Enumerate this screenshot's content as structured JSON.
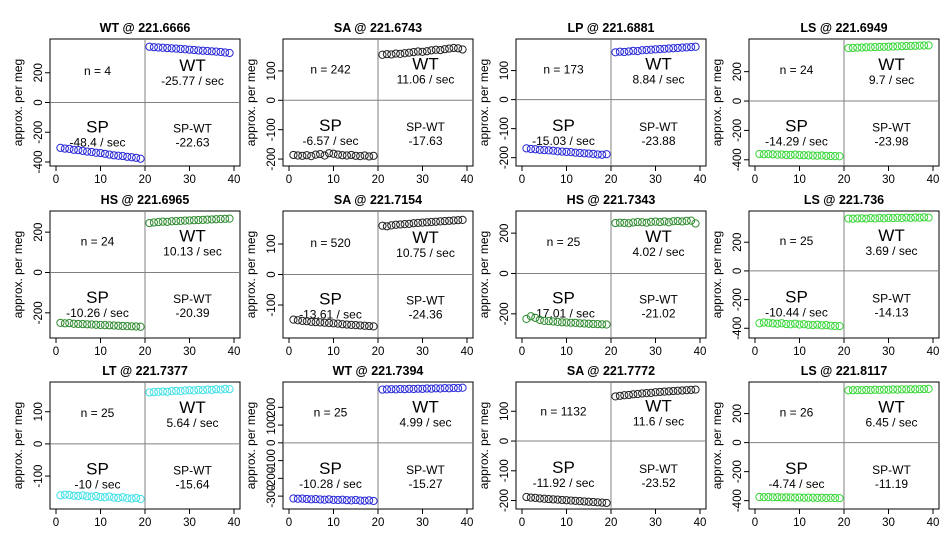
{
  "figure": {
    "ylabel": "approx. per meg",
    "x_ticks": [
      0,
      10,
      20,
      30,
      40
    ]
  },
  "chart_data": [
    {
      "type": "scatter",
      "title": "WT @ 221.6666",
      "color": "#2828d8",
      "xlim": [
        0,
        40
      ],
      "ylim": [
        -400,
        400
      ],
      "y_ticks": [
        -400,
        -200,
        0,
        200
      ],
      "n_text": "n = 4",
      "wt_label": "WT",
      "wt_rate": "-25.77 / sec",
      "sp_label": "SP",
      "sp_rate": "-48.4 / sec",
      "diff_label": "SP-WT",
      "diff_value": "-22.63",
      "x": [
        1,
        2,
        3,
        4,
        5,
        6,
        7,
        8,
        9,
        10,
        11,
        12,
        13,
        14,
        15,
        16,
        17,
        18,
        19,
        21,
        22,
        23,
        24,
        25,
        26,
        27,
        28,
        29,
        30,
        31,
        32,
        33,
        34,
        35,
        36,
        37,
        38,
        39
      ],
      "y": [
        -305,
        -310,
        -312,
        -318,
        -320,
        -325,
        -330,
        -333,
        -338,
        -340,
        -345,
        -350,
        -355,
        -358,
        -360,
        -365,
        -368,
        -372,
        -378,
        375,
        372,
        370,
        368,
        366,
        364,
        362,
        360,
        358,
        355,
        353,
        350,
        348,
        346,
        344,
        342,
        340,
        336,
        333
      ]
    },
    {
      "type": "scatter",
      "title": "SA @ 221.6743",
      "color": "#222222",
      "xlim": [
        0,
        40
      ],
      "ylim": [
        -210,
        195
      ],
      "y_ticks": [
        -200,
        -100,
        0,
        100
      ],
      "n_text": "n = 242",
      "wt_label": "WT",
      "wt_rate": "11.06 / sec",
      "sp_label": "SP",
      "sp_rate": "-6.57 / sec",
      "diff_label": "SP-WT",
      "diff_value": "-17.63",
      "x": [
        1,
        2,
        3,
        4,
        5,
        6,
        7,
        8,
        9,
        10,
        11,
        12,
        13,
        14,
        15,
        16,
        17,
        18,
        19,
        21,
        22,
        23,
        24,
        25,
        26,
        27,
        28,
        29,
        30,
        31,
        32,
        33,
        34,
        35,
        36,
        37,
        38,
        39
      ],
      "y": [
        -186,
        -188,
        -189,
        -187,
        -190,
        -185,
        -183,
        -188,
        -180,
        -182,
        -185,
        -187,
        -188,
        -186,
        -189,
        -190,
        -188,
        -191,
        -189,
        155,
        157,
        156,
        159,
        158,
        160,
        162,
        164,
        166,
        165,
        167,
        170,
        172,
        171,
        174,
        176,
        178,
        177,
        173
      ]
    },
    {
      "type": "scatter",
      "title": "LP @ 221.6881",
      "color": "#2828d8",
      "xlim": [
        0,
        40
      ],
      "ylim": [
        -215,
        195
      ],
      "y_ticks": [
        -200,
        -100,
        0,
        100
      ],
      "n_text": "n = 173",
      "wt_label": "WT",
      "wt_rate": "8.84 / sec",
      "sp_label": "SP",
      "sp_rate": "-15.03 / sec",
      "diff_label": "SP-WT",
      "diff_value": "-23.88",
      "x": [
        1,
        2,
        3,
        4,
        5,
        6,
        7,
        8,
        9,
        10,
        11,
        12,
        13,
        14,
        15,
        16,
        17,
        18,
        19,
        21,
        22,
        23,
        24,
        25,
        26,
        27,
        28,
        29,
        30,
        31,
        32,
        33,
        34,
        35,
        36,
        37,
        38,
        39
      ],
      "y": [
        -168,
        -170,
        -171,
        -173,
        -174,
        -175,
        -176,
        -178,
        -179,
        -180,
        -181,
        -183,
        -184,
        -185,
        -186,
        -187,
        -189,
        -190,
        -188,
        163,
        165,
        164,
        166,
        168,
        167,
        170,
        171,
        172,
        173,
        174,
        175,
        176,
        177,
        178,
        179,
        180,
        181,
        182
      ]
    },
    {
      "type": "scatter",
      "title": "LS @ 221.6949",
      "color": "#37d637",
      "xlim": [
        0,
        40
      ],
      "ylim": [
        -415,
        395
      ],
      "y_ticks": [
        -400,
        -200,
        0,
        200
      ],
      "n_text": "n = 24",
      "wt_label": "WT",
      "wt_rate": "9.7 / sec",
      "sp_label": "SP",
      "sp_rate": "-14.29 / sec",
      "diff_label": "SP-WT",
      "diff_value": "-23.98",
      "x": [
        1,
        2,
        3,
        4,
        5,
        6,
        7,
        8,
        9,
        10,
        11,
        12,
        13,
        14,
        15,
        16,
        17,
        18,
        19,
        21,
        22,
        23,
        24,
        25,
        26,
        27,
        28,
        29,
        30,
        31,
        32,
        33,
        34,
        35,
        36,
        37,
        38,
        39
      ],
      "y": [
        -360,
        -362,
        -361,
        -363,
        -365,
        -364,
        -366,
        -367,
        -365,
        -368,
        -369,
        -370,
        -371,
        -372,
        -371,
        -373,
        -374,
        -375,
        -376,
        360,
        362,
        363,
        364,
        365,
        366,
        367,
        368,
        369,
        370,
        371,
        372,
        373,
        374,
        375,
        376,
        377,
        378,
        379
      ]
    },
    {
      "type": "scatter",
      "title": "HS @ 221.6965",
      "color": "#2e8a2e",
      "xlim": [
        0,
        40
      ],
      "ylim": [
        -305,
        285
      ],
      "y_ticks": [
        -200,
        0,
        200
      ],
      "n_text": "n = 24",
      "wt_label": "WT",
      "wt_rate": "10.13 / sec",
      "sp_label": "SP",
      "sp_rate": "-10.26 / sec",
      "diff_label": "SP-WT",
      "diff_value": "-20.39",
      "x": [
        1,
        2,
        3,
        4,
        5,
        6,
        7,
        8,
        9,
        10,
        11,
        12,
        13,
        14,
        15,
        16,
        17,
        18,
        19,
        21,
        22,
        23,
        24,
        25,
        26,
        27,
        28,
        29,
        30,
        31,
        32,
        33,
        34,
        35,
        36,
        37,
        38,
        39
      ],
      "y": [
        -250,
        -252,
        -251,
        -254,
        -255,
        -256,
        -257,
        -258,
        -259,
        -260,
        -261,
        -262,
        -263,
        -264,
        -265,
        -266,
        -267,
        -268,
        -269,
        245,
        248,
        250,
        252,
        251,
        254,
        255,
        256,
        257,
        258,
        259,
        260,
        261,
        262,
        263,
        264,
        265,
        266,
        267
      ]
    },
    {
      "type": "scatter",
      "title": "SA @ 221.7154",
      "color": "#222222",
      "xlim": [
        0,
        40
      ],
      "ylim": [
        -195,
        195
      ],
      "y_ticks": [
        -100,
        0,
        100
      ],
      "n_text": "n = 520",
      "wt_label": "WT",
      "wt_rate": "10.75 / sec",
      "sp_label": "SP",
      "sp_rate": "-13.61 / sec",
      "diff_label": "SP-WT",
      "diff_value": "-24.36",
      "x": [
        1,
        2,
        3,
        4,
        5,
        6,
        7,
        8,
        9,
        10,
        11,
        12,
        13,
        14,
        15,
        16,
        17,
        18,
        19,
        21,
        22,
        23,
        24,
        25,
        26,
        27,
        28,
        29,
        30,
        31,
        32,
        33,
        34,
        35,
        36,
        37,
        38,
        39
      ],
      "y": [
        -148,
        -150,
        -152,
        -153,
        -155,
        -156,
        -157,
        -158,
        -159,
        -160,
        -161,
        -163,
        -164,
        -165,
        -166,
        -167,
        -168,
        -169,
        -170,
        160,
        158,
        161,
        163,
        164,
        165,
        166,
        168,
        169,
        170,
        171,
        172,
        173,
        174,
        175,
        176,
        177,
        178,
        179
      ]
    },
    {
      "type": "scatter",
      "title": "HS @ 221.7343",
      "color": "#2e8a2e",
      "xlim": [
        0,
        40
      ],
      "ylim": [
        -300,
        290
      ],
      "y_ticks": [
        -200,
        0,
        200
      ],
      "n_text": "n = 25",
      "wt_label": "WT",
      "wt_rate": "4.02 / sec",
      "sp_label": "SP",
      "sp_rate": "-17.01 / sec",
      "diff_label": "SP-WT",
      "diff_value": "-21.02",
      "x": [
        1,
        2,
        3,
        4,
        5,
        6,
        7,
        8,
        9,
        10,
        11,
        12,
        13,
        14,
        15,
        16,
        17,
        18,
        19,
        21,
        22,
        23,
        24,
        25,
        26,
        27,
        28,
        29,
        30,
        31,
        32,
        33,
        34,
        35,
        36,
        37,
        38,
        39
      ],
      "y": [
        -225,
        -212,
        -220,
        -230,
        -235,
        -236,
        -238,
        -240,
        -242,
        -243,
        -244,
        -245,
        -247,
        -248,
        -249,
        -250,
        -251,
        -252,
        -253,
        250,
        252,
        251,
        249,
        253,
        255,
        254,
        252,
        256,
        257,
        255,
        258,
        254,
        259,
        260,
        258,
        261,
        262,
        248
      ]
    },
    {
      "type": "scatter",
      "title": "LS @ 221.736",
      "color": "#37d637",
      "xlim": [
        0,
        40
      ],
      "ylim": [
        -440,
        390
      ],
      "y_ticks": [
        -400,
        -200,
        0,
        200
      ],
      "n_text": "n = 25",
      "wt_label": "WT",
      "wt_rate": "3.69 / sec",
      "sp_label": "SP",
      "sp_rate": "-10.44 / sec",
      "diff_label": "SP-WT",
      "diff_value": "-14.13",
      "x": [
        1,
        2,
        3,
        4,
        5,
        6,
        7,
        8,
        9,
        10,
        11,
        12,
        13,
        14,
        15,
        16,
        17,
        18,
        19,
        21,
        22,
        23,
        24,
        25,
        26,
        27,
        28,
        29,
        30,
        31,
        32,
        33,
        34,
        35,
        36,
        37,
        38,
        39
      ],
      "y": [
        -365,
        -360,
        -362,
        -366,
        -368,
        -365,
        -370,
        -372,
        -368,
        -374,
        -372,
        -376,
        -378,
        -375,
        -380,
        -378,
        -382,
        -384,
        -385,
        365,
        364,
        366,
        367,
        365,
        368,
        366,
        369,
        367,
        370,
        368,
        371,
        369,
        372,
        370,
        373,
        371,
        374,
        372
      ]
    },
    {
      "type": "scatter",
      "title": "LT @ 221.7377",
      "color": "#3fe0e8",
      "xlim": [
        0,
        40
      ],
      "ylim": [
        -190,
        180
      ],
      "y_ticks": [
        -100,
        0,
        100
      ],
      "n_text": "n = 25",
      "wt_label": "WT",
      "wt_rate": "5.64 / sec",
      "sp_label": "SP",
      "sp_rate": "-10 / sec",
      "diff_label": "SP-WT",
      "diff_value": "-15.64",
      "x": [
        1,
        2,
        3,
        4,
        5,
        6,
        7,
        8,
        9,
        10,
        11,
        12,
        13,
        14,
        15,
        16,
        17,
        18,
        19,
        21,
        22,
        23,
        24,
        25,
        26,
        27,
        28,
        29,
        30,
        31,
        32,
        33,
        34,
        35,
        36,
        37,
        38,
        39
      ],
      "y": [
        -160,
        -158,
        -159,
        -161,
        -162,
        -160,
        -163,
        -164,
        -162,
        -165,
        -166,
        -164,
        -167,
        -168,
        -166,
        -169,
        -170,
        -168,
        -171,
        160,
        161,
        162,
        163,
        162,
        164,
        165,
        164,
        166,
        167,
        166,
        168,
        167,
        169,
        168,
        170,
        169,
        171,
        170
      ]
    },
    {
      "type": "scatter",
      "title": "WT @ 221.7394",
      "color": "#2828d8",
      "xlim": [
        0,
        40
      ],
      "ylim": [
        -350,
        320
      ],
      "y_ticks": [
        -300,
        -200,
        -100,
        0,
        100,
        200
      ],
      "n_text": "n = 25",
      "wt_label": "WT",
      "wt_rate": "4.99 / sec",
      "sp_label": "SP",
      "sp_rate": "-10.28 / sec",
      "diff_label": "SP-WT",
      "diff_value": "-15.27",
      "x": [
        1,
        2,
        3,
        4,
        5,
        6,
        7,
        8,
        9,
        10,
        11,
        12,
        13,
        14,
        15,
        16,
        17,
        18,
        19,
        21,
        22,
        23,
        24,
        25,
        26,
        27,
        28,
        29,
        30,
        31,
        32,
        33,
        34,
        35,
        36,
        37,
        38,
        39
      ],
      "y": [
        -313,
        -315,
        -314,
        -316,
        -318,
        -317,
        -319,
        -320,
        -318,
        -321,
        -322,
        -320,
        -323,
        -324,
        -322,
        -325,
        -326,
        -324,
        -327,
        300,
        301,
        302,
        301,
        303,
        302,
        304,
        303,
        305,
        304,
        306,
        305,
        307,
        306,
        308,
        307,
        309,
        308,
        310
      ]
    },
    {
      "type": "scatter",
      "title": "SA @ 221.7772",
      "color": "#222222",
      "xlim": [
        0,
        40
      ],
      "ylim": [
        -215,
        185
      ],
      "y_ticks": [
        -200,
        -100,
        0,
        100
      ],
      "n_text": "n = 1132",
      "wt_label": "WT",
      "wt_rate": "11.6 / sec",
      "sp_label": "SP",
      "sp_rate": "-11.92 / sec",
      "diff_label": "SP-WT",
      "diff_value": "-23.52",
      "x": [
        1,
        2,
        3,
        4,
        5,
        6,
        7,
        8,
        9,
        10,
        11,
        12,
        13,
        14,
        15,
        16,
        17,
        18,
        19,
        21,
        22,
        23,
        24,
        25,
        26,
        27,
        28,
        29,
        30,
        31,
        32,
        33,
        34,
        35,
        36,
        37,
        38,
        39
      ],
      "y": [
        -188,
        -190,
        -191,
        -193,
        -194,
        -195,
        -196,
        -197,
        -198,
        -199,
        -200,
        -201,
        -202,
        -203,
        -204,
        -205,
        -206,
        -207,
        -208,
        150,
        152,
        154,
        155,
        157,
        158,
        160,
        161,
        162,
        164,
        165,
        166,
        167,
        168,
        169,
        170,
        171,
        172,
        173
      ]
    },
    {
      "type": "scatter",
      "title": "LS @ 221.8117",
      "color": "#37d637",
      "xlim": [
        0,
        40
      ],
      "ylim": [
        -430,
        390
      ],
      "y_ticks": [
        -400,
        -200,
        0,
        200
      ],
      "n_text": "n = 26",
      "wt_label": "WT",
      "wt_rate": "6.45 / sec",
      "sp_label": "SP",
      "sp_rate": "-4.74 / sec",
      "diff_label": "SP-WT",
      "diff_value": "-11.19",
      "x": [
        1,
        2,
        3,
        4,
        5,
        6,
        7,
        8,
        9,
        10,
        11,
        12,
        13,
        14,
        15,
        16,
        17,
        18,
        19,
        21,
        22,
        23,
        24,
        25,
        26,
        27,
        28,
        29,
        30,
        31,
        32,
        33,
        34,
        35,
        36,
        37,
        38,
        39
      ],
      "y": [
        -375,
        -376,
        -375,
        -377,
        -376,
        -378,
        -377,
        -378,
        -379,
        -378,
        -380,
        -379,
        -380,
        -381,
        -380,
        -382,
        -381,
        -382,
        -383,
        360,
        361,
        362,
        361,
        363,
        362,
        364,
        363,
        365,
        364,
        366,
        365,
        367,
        366,
        368,
        367,
        368,
        369,
        370
      ]
    }
  ]
}
